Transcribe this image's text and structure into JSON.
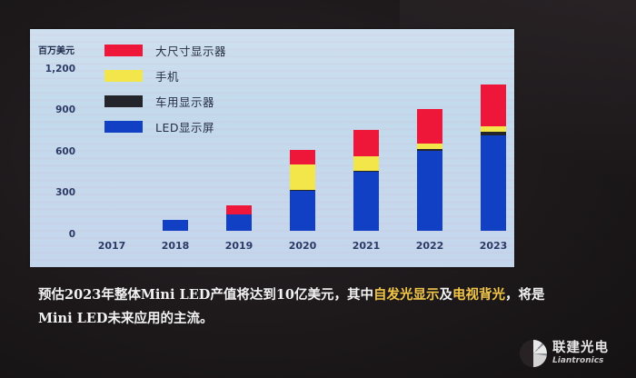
{
  "chart_data": {
    "type": "bar",
    "stacked": true,
    "title": "",
    "xlabel": "",
    "ylabel": "百万美元",
    "ylim": [
      0,
      1200
    ],
    "yticks": [
      "0",
      "300",
      "600",
      "900",
      "1,200"
    ],
    "grid": false,
    "legend_position": "top-left",
    "categories": [
      "2017",
      "2018",
      "2019",
      "2020",
      "2021",
      "2022",
      "2023"
    ],
    "series": [
      {
        "name": "LED显示屏",
        "color": "#1240c4",
        "values": [
          0,
          80,
          120,
          290,
          430,
          580,
          690
        ]
      },
      {
        "name": "车用显示器",
        "color": "#23252b",
        "values": [
          0,
          0,
          0,
          5,
          5,
          15,
          30
        ]
      },
      {
        "name": "手机",
        "color": "#f2e64a",
        "values": [
          0,
          0,
          0,
          185,
          105,
          40,
          40
        ]
      },
      {
        "name": "大尺寸显示器",
        "color": "#ee1639",
        "values": [
          0,
          0,
          65,
          105,
          190,
          250,
          300
        ]
      }
    ],
    "totals": [
      0,
      80,
      185,
      585,
      730,
      885,
      1060
    ]
  },
  "legend": [
    {
      "label": "大尺寸显示器",
      "color": "#ee1639"
    },
    {
      "label": "手机",
      "color": "#f2e64a"
    },
    {
      "label": "车用显示器",
      "color": "#23252b"
    },
    {
      "label": "LED显示屏",
      "color": "#1240c4"
    }
  ],
  "axis": {
    "unit": "百万美元",
    "yticks": [
      {
        "label": "1,200",
        "value": 1200
      },
      {
        "label": "900",
        "value": 900
      },
      {
        "label": "600",
        "value": 600
      },
      {
        "label": "300",
        "value": 300
      },
      {
        "label": "0",
        "value": 0
      }
    ]
  },
  "caption": {
    "part1": "预估2023年整体Mini LED产值将达到10亿美元，其中",
    "highlight1": "自发光显示",
    "part2": "及",
    "highlight2": "电视背光",
    "part3": "，将是Mini LED未来应用的主流。"
  },
  "logo": {
    "name_cn": "联建光电",
    "name_en": "Liantronics"
  }
}
